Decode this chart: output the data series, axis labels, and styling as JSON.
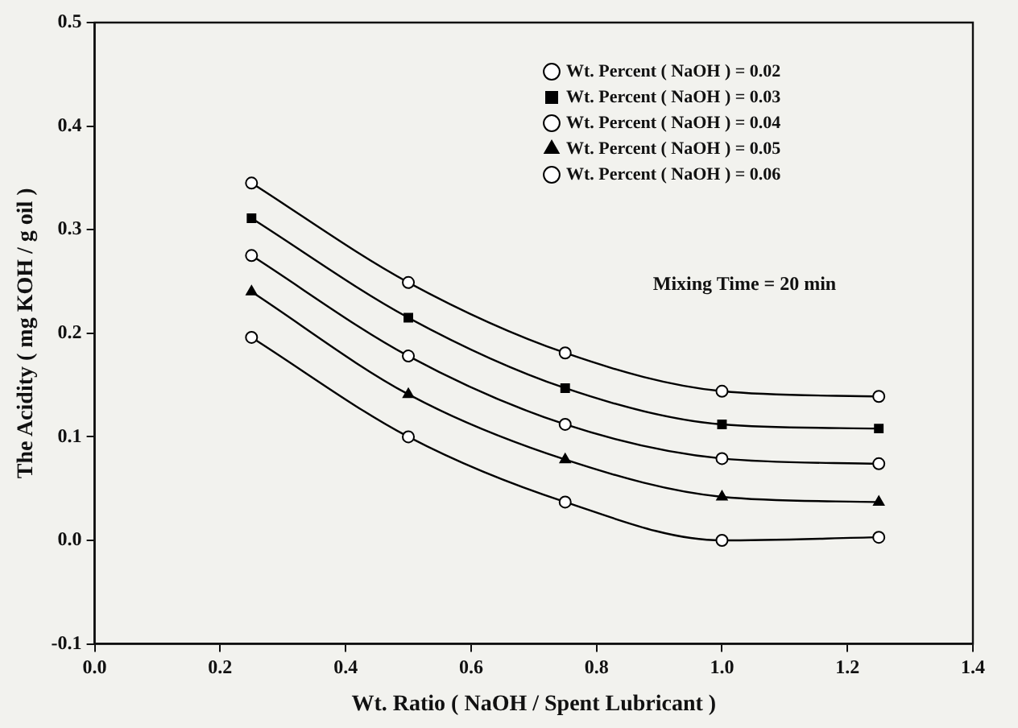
{
  "chart_data": {
    "type": "line",
    "xlabel": "Wt. Ratio ( NaOH / Spent Lubricant )",
    "ylabel": "The Acidity ( mg KOH / g oil )",
    "x": [
      0.25,
      0.5,
      0.75,
      1.0,
      1.25
    ],
    "series": [
      {
        "name": "Wt. Percent ( NaOH ) = 0.02",
        "color": "#000000",
        "marker": "circle",
        "values": [
          0.345,
          0.249,
          0.181,
          0.144,
          0.139
        ]
      },
      {
        "name": "Wt. Percent ( NaOH ) = 0.03",
        "color": "#000000",
        "marker": "square",
        "values": [
          0.311,
          0.215,
          0.147,
          0.112,
          0.108
        ]
      },
      {
        "name": "Wt. Percent ( NaOH ) = 0.04",
        "color": "#000000",
        "marker": "circle",
        "values": [
          0.275,
          0.178,
          0.112,
          0.079,
          0.074
        ]
      },
      {
        "name": "Wt. Percent ( NaOH ) = 0.05",
        "color": "#000000",
        "marker": "triangle",
        "values": [
          0.24,
          0.141,
          0.078,
          0.042,
          0.037
        ]
      },
      {
        "name": "Wt. Percent ( NaOH ) = 0.06",
        "color": "#000000",
        "marker": "circle",
        "values": [
          0.196,
          0.1,
          0.037,
          0.0,
          0.003
        ]
      }
    ],
    "xlim": [
      0,
      1.4
    ],
    "xticks": [
      {
        "value": 0,
        "label": "0.0"
      },
      {
        "value": 0.2,
        "label": "0.2"
      },
      {
        "value": 0.4,
        "label": "0.4"
      },
      {
        "value": 0.6,
        "label": "0.6"
      },
      {
        "value": 0.8,
        "label": "0.8"
      },
      {
        "value": 1.0,
        "label": "1.0"
      },
      {
        "value": 1.2,
        "label": "1.2"
      },
      {
        "value": 1.4,
        "label": "1.4"
      }
    ],
    "ylim": [
      -0.1,
      0.5
    ],
    "yticks": [
      {
        "value": -0.1,
        "label": "-0.1"
      },
      {
        "value": 0,
        "label": "0.0"
      },
      {
        "value": 0.1,
        "label": "0.1"
      },
      {
        "value": 0.2,
        "label": "0.2"
      },
      {
        "value": 0.3,
        "label": "0.3"
      },
      {
        "value": 0.4,
        "label": "0.4"
      },
      {
        "value": 0.5,
        "label": "0.5"
      }
    ],
    "annotations": [
      "Mixing Time = 20 min"
    ],
    "legend": "top right",
    "line_style": "solid"
  }
}
